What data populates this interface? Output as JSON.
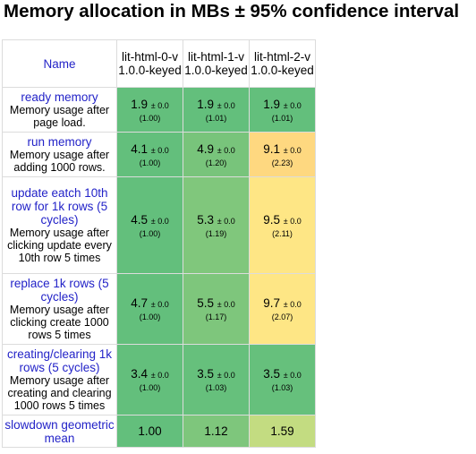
{
  "title": "Memory allocation in MBs ± 95% confidence interval",
  "header": {
    "name_label": "Name",
    "frameworks": [
      "lit-html-0-v1.0.0-keyed",
      "lit-html-1-v1.0.0-keyed",
      "lit-html-2-v1.0.0-keyed"
    ]
  },
  "rows": [
    {
      "name": "ready memory",
      "desc": "Memory usage after page load.",
      "cells": [
        {
          "mean": "1.9",
          "ci": "± 0.0",
          "factor": "(1.00)",
          "color": "#63bf7c"
        },
        {
          "mean": "1.9",
          "ci": "± 0.0",
          "factor": "(1.01)",
          "color": "#63bf7c"
        },
        {
          "mean": "1.9",
          "ci": "± 0.0",
          "factor": "(1.01)",
          "color": "#63bf7c"
        }
      ]
    },
    {
      "name": "run memory",
      "desc": "Memory usage after adding 1000 rows.",
      "cells": [
        {
          "mean": "4.1",
          "ci": "± 0.0",
          "factor": "(1.00)",
          "color": "#63bf7c"
        },
        {
          "mean": "4.9",
          "ci": "± 0.0",
          "factor": "(1.20)",
          "color": "#78c47b"
        },
        {
          "mean": "9.1",
          "ci": "± 0.0",
          "factor": "(2.23)",
          "color": "#fed880"
        }
      ]
    },
    {
      "name": "update eatch 10th row for 1k rows (5 cycles)",
      "desc": "Memory usage after clicking update every 10th row 5 times",
      "cells": [
        {
          "mean": "4.5",
          "ci": "± 0.0",
          "factor": "(1.00)",
          "color": "#63bf7c"
        },
        {
          "mean": "5.3",
          "ci": "± 0.0",
          "factor": "(1.19)",
          "color": "#80c77c"
        },
        {
          "mean": "9.5",
          "ci": "± 0.0",
          "factor": "(2.11)",
          "color": "#fee685"
        }
      ]
    },
    {
      "name": "replace 1k rows (5 cycles)",
      "desc": "Memory usage after clicking create 1000 rows 5 times",
      "cells": [
        {
          "mean": "4.7",
          "ci": "± 0.0",
          "factor": "(1.00)",
          "color": "#63bf7c"
        },
        {
          "mean": "5.5",
          "ci": "± 0.0",
          "factor": "(1.17)",
          "color": "#7ec67c"
        },
        {
          "mean": "9.7",
          "ci": "± 0.0",
          "factor": "(2.07)",
          "color": "#fee685"
        }
      ]
    },
    {
      "name": "creating/clearing 1k rows (5 cycles)",
      "desc": "Memory usage after creating and clearing 1000 rows 5 times",
      "cells": [
        {
          "mean": "3.4",
          "ci": "± 0.0",
          "factor": "(1.00)",
          "color": "#63bf7c"
        },
        {
          "mean": "3.5",
          "ci": "± 0.0",
          "factor": "(1.03)",
          "color": "#66c07c"
        },
        {
          "mean": "3.5",
          "ci": "± 0.0",
          "factor": "(1.03)",
          "color": "#66c07c"
        }
      ]
    }
  ],
  "geo": {
    "name": "slowdown geometric mean",
    "values": [
      {
        "value": "1.00",
        "color": "#63bf7c"
      },
      {
        "value": "1.12",
        "color": "#7ec67c"
      },
      {
        "value": "1.59",
        "color": "#c3dc81"
      }
    ]
  }
}
